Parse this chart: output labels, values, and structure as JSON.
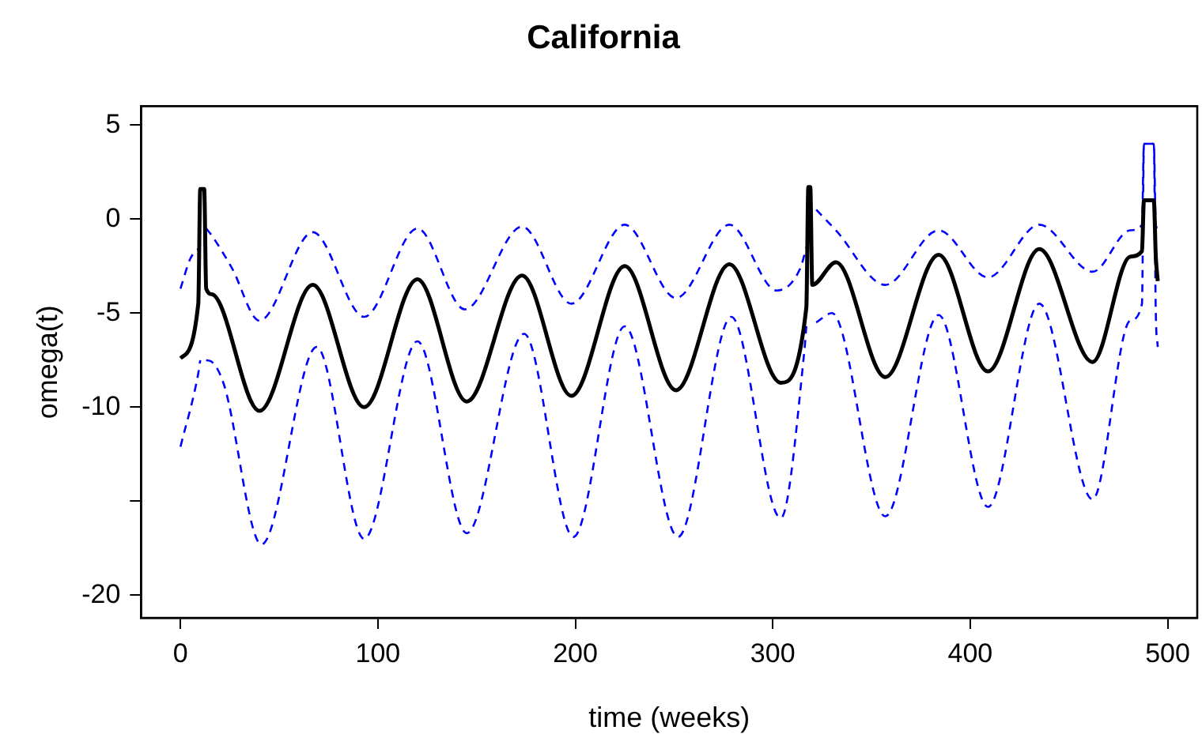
{
  "chart_data": {
    "type": "line",
    "title": "California",
    "xlabel": "time (weeks)",
    "ylabel": "omega(t)",
    "xlim": [
      -20,
      515
    ],
    "ylim": [
      -21.2,
      6.0
    ],
    "xticks": [
      0,
      100,
      200,
      300,
      400,
      500
    ],
    "yticks": [
      5,
      0,
      -5,
      -10,
      {
        "value": -15,
        "label": null
      },
      -20
    ],
    "grid": false,
    "legend": false,
    "marker": "none",
    "series": [
      {
        "color": "#000000",
        "line_style": "solid",
        "x": [
          0,
          9,
          10,
          12,
          13,
          16,
          40,
          67,
          93,
          120,
          145,
          173,
          198,
          225,
          251,
          278,
          304,
          317,
          318,
          319,
          320,
          332,
          357,
          384,
          409,
          435,
          462,
          481,
          487,
          488,
          493,
          494,
          495
        ],
        "values": [
          -7.4,
          -4.5,
          1.6,
          1.6,
          -3.7,
          -4.0,
          -10.2,
          -3.5,
          -10.0,
          -3.2,
          -9.7,
          -3.0,
          -9.4,
          -2.5,
          -9.1,
          -2.4,
          -8.7,
          -4.7,
          1.7,
          1.7,
          -3.5,
          -2.3,
          -8.4,
          -1.9,
          -8.1,
          -1.6,
          -7.6,
          -2.0,
          -1.7,
          1.0,
          1.0,
          -2.0,
          -3.3
        ]
      },
      {
        "color": "#0000ff",
        "line_style": "dashed",
        "x": [
          0,
          5,
          10,
          11,
          12,
          13,
          16,
          26,
          40,
          67,
          93,
          120,
          144,
          173,
          198,
          225,
          251,
          278,
          302,
          314,
          317,
          318,
          319,
          322,
          332,
          357,
          384,
          409,
          435,
          462,
          481,
          487,
          488,
          493,
          494,
          495
        ],
        "values": [
          -3.7,
          -2.1,
          -1.5,
          null,
          null,
          -0.5,
          -0.9,
          -2.6,
          -5.4,
          -0.7,
          -5.2,
          -0.5,
          -4.8,
          -0.4,
          -4.5,
          -0.3,
          -4.2,
          -0.3,
          -3.8,
          -2.6,
          -1.5,
          null,
          null,
          0.5,
          -0.6,
          -3.5,
          -0.6,
          -3.1,
          -0.3,
          -2.8,
          -0.6,
          -0.3,
          4.0,
          4.0,
          -0.3,
          -0.5
        ]
      },
      {
        "color": "#0000ff",
        "line_style": "dashed",
        "x": [
          0,
          9,
          10,
          11,
          12,
          13,
          16,
          22,
          41,
          69,
          93,
          120,
          145,
          174,
          199,
          225,
          252,
          279,
          304,
          316,
          317,
          318,
          319,
          322,
          330,
          357,
          384,
          409,
          435,
          462,
          481,
          487,
          488,
          493,
          494,
          495
        ],
        "values": [
          -12.1,
          -8.2,
          -7.5,
          null,
          null,
          -7.5,
          -7.6,
          -8.8,
          -17.3,
          -6.8,
          -17.0,
          -6.5,
          -16.7,
          -6.1,
          -16.9,
          -5.7,
          -16.9,
          -5.2,
          -15.9,
          -7.0,
          -5.7,
          null,
          null,
          -5.5,
          -5.0,
          -15.8,
          -5.1,
          -15.3,
          -4.5,
          -14.9,
          -5.4,
          -4.5,
          4.0,
          4.0,
          -5.0,
          -6.8
        ]
      }
    ]
  }
}
